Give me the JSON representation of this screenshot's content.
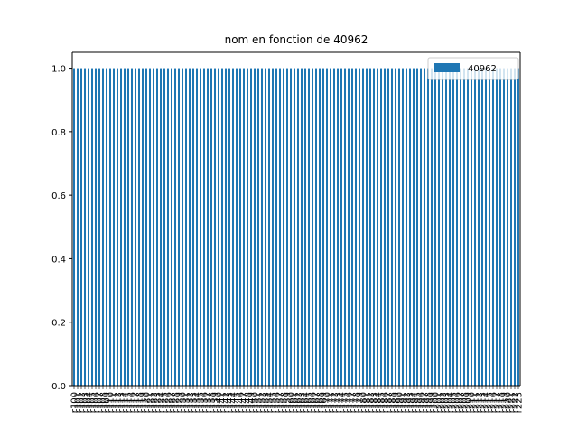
{
  "chart_data": {
    "type": "bar",
    "title": "nom en fonction de 40962",
    "xlabel": "",
    "ylabel": "",
    "ylim": [
      0,
      1.05
    ],
    "yticks": [
      "0.0",
      "0.2",
      "0.4",
      "0.6",
      "0.8",
      "1.0"
    ],
    "ytick_values": [
      0,
      0.2,
      0.4,
      0.6,
      0.8,
      1.0
    ],
    "legend_position": "top-right",
    "grid": false,
    "bar_color": "#1f77b4",
    "series": [
      {
        "name": "40962",
        "values": [
          1,
          1,
          1,
          1,
          1,
          1,
          1,
          1,
          1,
          1,
          1,
          1,
          1,
          1,
          1,
          1,
          1,
          1,
          1,
          1,
          1,
          1,
          1,
          1,
          1,
          1,
          1,
          1,
          1,
          1,
          1,
          1,
          1,
          1,
          1,
          1,
          1,
          1,
          1,
          1,
          1,
          1,
          1,
          1,
          1,
          1,
          1,
          1,
          1,
          1,
          1,
          1,
          1,
          1,
          1,
          1,
          1,
          1,
          1,
          1,
          1,
          1,
          1,
          1,
          1,
          1,
          1,
          1,
          1,
          1,
          1,
          1,
          1,
          1,
          1,
          1,
          1,
          1,
          1,
          1,
          1,
          1,
          1,
          1,
          1,
          1,
          1,
          1,
          1,
          1,
          1,
          1,
          1,
          1,
          1,
          1,
          1,
          1,
          1,
          1,
          1,
          1,
          1,
          1,
          1,
          1,
          1,
          1,
          1,
          1,
          1,
          1,
          1,
          1,
          1,
          1,
          1,
          1,
          1,
          1,
          1,
          1,
          1,
          1
        ]
      }
    ],
    "categories": [
      "r100",
      "r101",
      "r102",
      "r103",
      "r104",
      "r105",
      "r106",
      "r107",
      "r108",
      "r109",
      "r110",
      "r111",
      "r112",
      "r113",
      "r114",
      "r115",
      "r116",
      "r117",
      "r118",
      "r119",
      "r120",
      "r121",
      "r122",
      "r123",
      "r124",
      "r125",
      "r126",
      "r127",
      "r128",
      "r129",
      "r130",
      "r131",
      "r132",
      "r133",
      "r134",
      "r135",
      "r136",
      "r137",
      "r138",
      "r139",
      "r140",
      "r141",
      "r142",
      "r143",
      "r144",
      "r145",
      "r146",
      "r147",
      "r148",
      "r149",
      "r150",
      "r151",
      "r152",
      "r153",
      "r154",
      "r155",
      "r156",
      "r157",
      "r158",
      "r159",
      "r160",
      "r161",
      "r162",
      "r163",
      "r164",
      "r165",
      "r166",
      "r167",
      "r168",
      "r169",
      "r170",
      "r171",
      "r172",
      "r173",
      "r174",
      "r175",
      "r176",
      "r177",
      "r178",
      "r179",
      "r180",
      "r181",
      "r182",
      "r183",
      "r184",
      "r185",
      "r186",
      "r187",
      "r188",
      "r189",
      "r190",
      "r191",
      "r192",
      "r193",
      "r194",
      "r195",
      "r196",
      "r197",
      "r198",
      "r199",
      "r200",
      "r201",
      "r202",
      "r203",
      "r204",
      "r205",
      "r206",
      "r207",
      "r208",
      "r209",
      "r210",
      "r211",
      "r212",
      "r213",
      "r214",
      "r215",
      "r216",
      "r217",
      "r218",
      "r219",
      "r220",
      "r221",
      "r222",
      "r223"
    ]
  }
}
